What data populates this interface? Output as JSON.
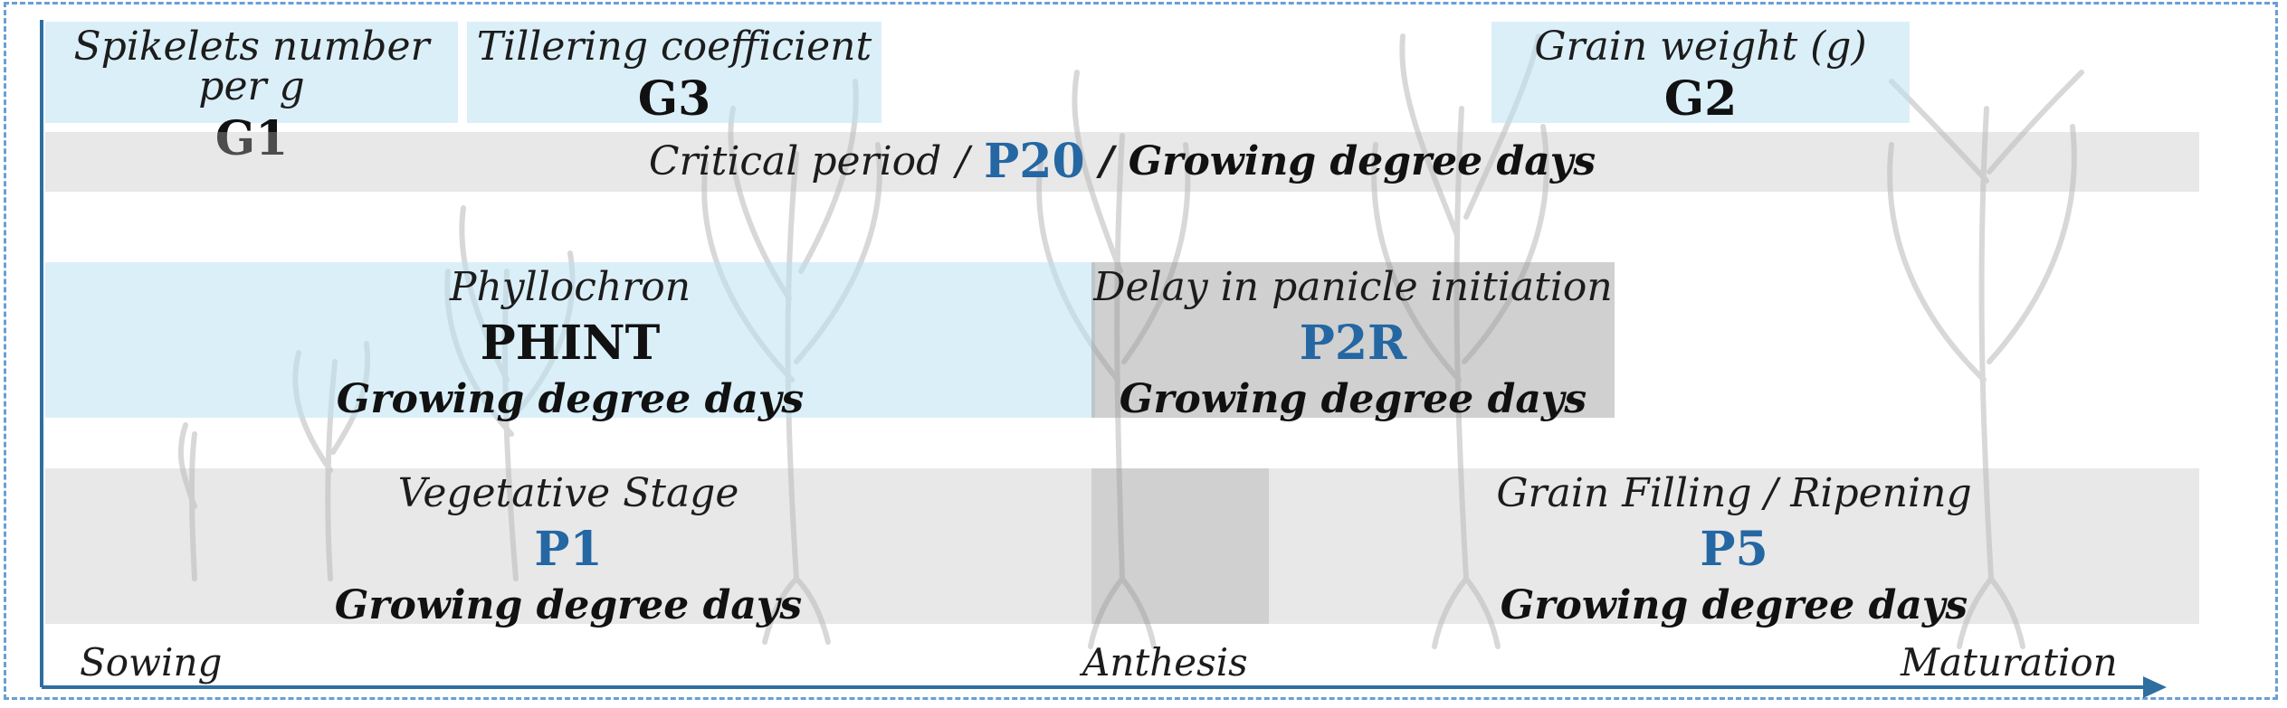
{
  "top_params": [
    {
      "desc": "Spikelets number per g",
      "code": "G1"
    },
    {
      "desc": "Tillering coefficient",
      "code": "G3"
    },
    {
      "desc": "Grain weight (g)",
      "code": "G2"
    }
  ],
  "critical_period": {
    "desc": "Critical period",
    "sep1": "/",
    "code": "P20",
    "sep2": "/",
    "unit": "Growing degree days"
  },
  "phyllochron": {
    "desc": "Phyllochron",
    "code": "PHINT",
    "unit": "Growing degree days"
  },
  "panicle_delay": {
    "desc": "Delay in panicle initiation",
    "code": "P2R",
    "unit": "Growing degree days"
  },
  "vegetative": {
    "desc": "Vegetative Stage",
    "code": "P1",
    "unit": "Growing degree days"
  },
  "grain_filling": {
    "desc": "Grain Filling / Ripening",
    "code": "P5",
    "unit": "Growing degree days"
  },
  "timeline": {
    "start": "Sowing",
    "middle": "Anthesis",
    "end": "Maturation"
  },
  "colors": {
    "accent": "#2467a3",
    "frame": "#6a9fd4",
    "axis": "#2f6f9f",
    "blue_box": "#d6eef8",
    "grey_box": "#e4e4e4"
  },
  "background_illustration": "rice-plant-growth-stages"
}
